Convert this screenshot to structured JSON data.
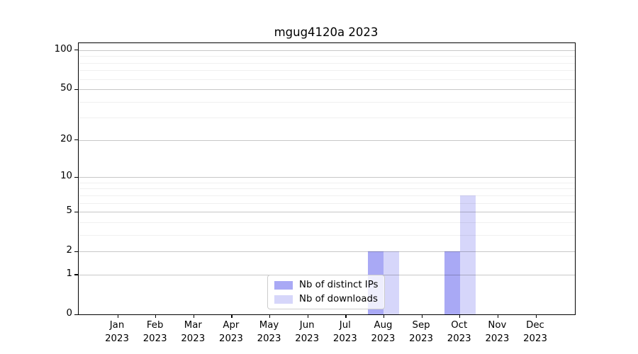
{
  "title": "mgug4120a 2023",
  "chart_data": {
    "type": "bar",
    "title": "mgug4120a 2023",
    "categories": [
      "Jan",
      "Feb",
      "Mar",
      "Apr",
      "May",
      "Jun",
      "Jul",
      "Aug",
      "Sep",
      "Oct",
      "Nov",
      "Dec"
    ],
    "year": "2023",
    "series": [
      {
        "name": "Nb of distinct IPs",
        "color": "rgba(83,83,235,0.5)",
        "values": [
          0,
          0,
          0,
          0,
          0,
          0,
          0,
          2,
          0,
          2,
          0,
          0
        ]
      },
      {
        "name": "Nb of downloads",
        "color": "rgba(83,83,235,0.24)",
        "values": [
          0,
          0,
          0,
          0,
          0,
          0,
          0,
          2,
          0,
          7,
          0,
          0
        ]
      }
    ],
    "yscale": "log10(1+y)",
    "ylim": [
      0,
      113
    ],
    "y_major_ticks": [
      0,
      1,
      2,
      5,
      10,
      20,
      50,
      100
    ],
    "y_minor_ticks": [
      3,
      4,
      6,
      7,
      8,
      9,
      30,
      40,
      60,
      70,
      80,
      90
    ],
    "grid": "horizontal, drawn over bars",
    "legend_position": "lower center"
  }
}
